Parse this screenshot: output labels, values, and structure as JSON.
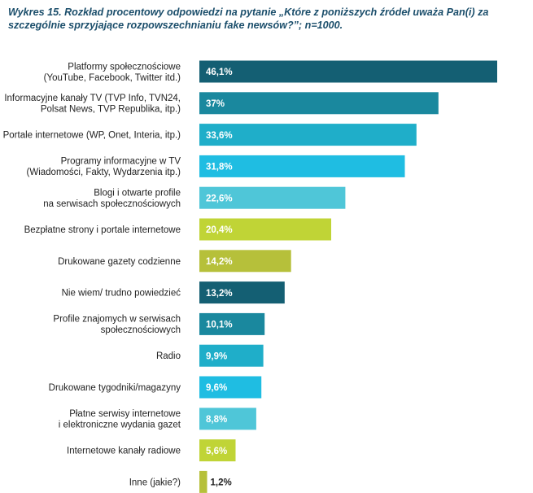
{
  "chart_data": {
    "type": "bar",
    "orientation": "horizontal",
    "title": "Wykres 15. Rozkład procentowy odpowiedzi na pytanie „Które z poniższych źródeł uważa Pan(i) za szczególnie sprzyjające rozpowszechnianiu fake newsów?”; n=1000.",
    "xlabel": "",
    "ylabel": "",
    "xlim": [
      0,
      50
    ],
    "grid": false,
    "categories": [
      [
        "Platformy społecznościowe",
        "(YouTube, Facebook, Twitter itd.)"
      ],
      [
        "Informacyjne kanały TV (TVP Info, TVN24,",
        "Polsat News, TVP Republika, itp.)"
      ],
      [
        "Portale internetowe (WP, Onet, Interia, itp.)"
      ],
      [
        "Programy informacyjne w TV",
        "(Wiadomości, Fakty, Wydarzenia itp.)"
      ],
      [
        "Blogi i otwarte profile",
        "na serwisach społecznościowych"
      ],
      [
        "Bezpłatne strony i portale internetowe"
      ],
      [
        "Drukowane gazety codzienne"
      ],
      [
        "Nie wiem/ trudno powiedzieć"
      ],
      [
        "Profile znajomych w serwisach",
        "społecznościowych"
      ],
      [
        "Radio"
      ],
      [
        "Drukowane tygodniki/magazyny"
      ],
      [
        "Płatne serwisy internetowe",
        "i elektroniczne wydania gazet"
      ],
      [
        "Internetowe kanały radiowe"
      ],
      [
        "Inne (jakie?)"
      ]
    ],
    "values": [
      46.1,
      37,
      33.6,
      31.8,
      22.6,
      20.4,
      14.2,
      13.2,
      10.1,
      9.9,
      9.6,
      8.8,
      5.6,
      1.2
    ],
    "value_labels": [
      "46,1%",
      "37%",
      "33,6%",
      "31,8%",
      "22,6%",
      "20,4%",
      "14,2%",
      "13,2%",
      "10,1%",
      "9,9%",
      "9,6%",
      "8,8%",
      "5,6%",
      "1,2%"
    ],
    "bar_colors": [
      "#145f73",
      "#1a889e",
      "#1faec9",
      "#1fbde2",
      "#4fc6d8",
      "#c0d436",
      "#b6c03a",
      "#145f73",
      "#1a889e",
      "#1faec9",
      "#1fbde2",
      "#4fc6d8",
      "#c0d436",
      "#b6c03a"
    ],
    "value_label_colors": [
      "#ffffff",
      "#ffffff",
      "#ffffff",
      "#ffffff",
      "#ffffff",
      "#ffffff",
      "#ffffff",
      "#ffffff",
      "#ffffff",
      "#ffffff",
      "#ffffff",
      "#ffffff",
      "#ffffff",
      "#222222"
    ]
  }
}
